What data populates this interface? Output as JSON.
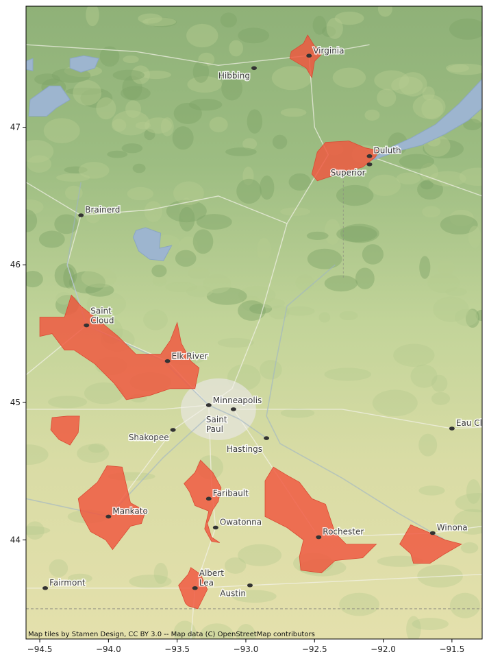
{
  "map": {
    "extent": {
      "lon": [
        -94.6,
        -91.28
      ],
      "lat": [
        43.28,
        47.88
      ]
    },
    "x_ticks": [
      {
        "value": -94.5,
        "label": "−94.5"
      },
      {
        "value": -94.0,
        "label": "−94.0"
      },
      {
        "value": -93.5,
        "label": "−93.5"
      },
      {
        "value": -93.0,
        "label": "−93.0"
      },
      {
        "value": -92.5,
        "label": "−92.5"
      },
      {
        "value": -92.0,
        "label": "−92.0"
      },
      {
        "value": -91.5,
        "label": "−91.5"
      }
    ],
    "y_ticks": [
      {
        "value": 44,
        "label": "44"
      },
      {
        "value": 45,
        "label": "45"
      },
      {
        "value": 46,
        "label": "46"
      },
      {
        "value": 47,
        "label": "47"
      }
    ],
    "colors": {
      "basemap_green": "#a9c585",
      "basemap_yellow": "#dfe0a9",
      "water": "#9db5cf",
      "region_fill": "#f0563e",
      "region_edge": "#d94a33",
      "city_dot": "#333333"
    },
    "regions": [
      {
        "name": "virginia-region",
        "coords": [
          [
            -92.67,
            47.55
          ],
          [
            -92.58,
            47.61
          ],
          [
            -92.55,
            47.67
          ],
          [
            -92.5,
            47.59
          ],
          [
            -92.44,
            47.54
          ],
          [
            -92.5,
            47.48
          ],
          [
            -92.52,
            47.36
          ],
          [
            -92.56,
            47.43
          ],
          [
            -92.68,
            47.5
          ]
        ]
      },
      {
        "name": "duluth-superior-region",
        "coords": [
          [
            -92.52,
            46.66
          ],
          [
            -92.48,
            46.82
          ],
          [
            -92.42,
            46.89
          ],
          [
            -92.25,
            46.9
          ],
          [
            -92.13,
            46.85
          ],
          [
            -92.03,
            46.83
          ],
          [
            -92.06,
            46.78
          ],
          [
            -92.15,
            46.71
          ],
          [
            -92.3,
            46.67
          ],
          [
            -92.48,
            46.61
          ]
        ]
      },
      {
        "name": "saint-cloud-elk-river-region",
        "coords": [
          [
            -94.5,
            45.62
          ],
          [
            -94.32,
            45.62
          ],
          [
            -94.27,
            45.78
          ],
          [
            -94.2,
            45.7
          ],
          [
            -94.05,
            45.58
          ],
          [
            -93.93,
            45.48
          ],
          [
            -93.8,
            45.35
          ],
          [
            -93.62,
            45.35
          ],
          [
            -93.55,
            45.45
          ],
          [
            -93.5,
            45.58
          ],
          [
            -93.47,
            45.43
          ],
          [
            -93.4,
            45.3
          ],
          [
            -93.34,
            45.25
          ],
          [
            -93.37,
            45.1
          ],
          [
            -93.55,
            45.1
          ],
          [
            -93.7,
            45.05
          ],
          [
            -93.87,
            45.02
          ],
          [
            -93.96,
            45.14
          ],
          [
            -94.1,
            45.28
          ],
          [
            -94.25,
            45.38
          ],
          [
            -94.32,
            45.38
          ],
          [
            -94.41,
            45.5
          ],
          [
            -94.5,
            45.48
          ]
        ]
      },
      {
        "name": "west-small-region",
        "coords": [
          [
            -94.41,
            44.89
          ],
          [
            -94.3,
            44.9
          ],
          [
            -94.21,
            44.9
          ],
          [
            -94.22,
            44.78
          ],
          [
            -94.28,
            44.69
          ],
          [
            -94.36,
            44.73
          ],
          [
            -94.42,
            44.8
          ]
        ]
      },
      {
        "name": "mankato-region",
        "coords": [
          [
            -94.22,
            44.3
          ],
          [
            -94.08,
            44.42
          ],
          [
            -94.01,
            44.54
          ],
          [
            -93.9,
            44.53
          ],
          [
            -93.84,
            44.27
          ],
          [
            -93.73,
            44.21
          ],
          [
            -93.76,
            44.12
          ],
          [
            -93.84,
            44.1
          ],
          [
            -93.97,
            43.93
          ],
          [
            -94.02,
            44.0
          ],
          [
            -94.13,
            44.06
          ],
          [
            -94.2,
            44.19
          ]
        ]
      },
      {
        "name": "faribault-owatonna-region",
        "coords": [
          [
            -93.45,
            44.41
          ],
          [
            -93.37,
            44.49
          ],
          [
            -93.33,
            44.58
          ],
          [
            -93.24,
            44.49
          ],
          [
            -93.18,
            44.38
          ],
          [
            -93.2,
            44.28
          ],
          [
            -93.24,
            44.22
          ],
          [
            -93.28,
            44.12
          ],
          [
            -93.25,
            44.02
          ],
          [
            -93.19,
            43.98
          ],
          [
            -93.25,
            43.99
          ],
          [
            -93.3,
            44.08
          ],
          [
            -93.27,
            44.21
          ],
          [
            -93.37,
            44.25
          ],
          [
            -93.41,
            44.35
          ]
        ]
      },
      {
        "name": "rochester-region",
        "coords": [
          [
            -92.86,
            44.43
          ],
          [
            -92.8,
            44.53
          ],
          [
            -92.7,
            44.47
          ],
          [
            -92.61,
            44.42
          ],
          [
            -92.52,
            44.3
          ],
          [
            -92.42,
            44.26
          ],
          [
            -92.35,
            44.05
          ],
          [
            -92.27,
            43.97
          ],
          [
            -92.05,
            43.97
          ],
          [
            -92.15,
            43.87
          ],
          [
            -92.35,
            43.85
          ],
          [
            -92.45,
            43.76
          ],
          [
            -92.6,
            43.78
          ],
          [
            -92.61,
            43.88
          ],
          [
            -92.58,
            44.0
          ],
          [
            -92.7,
            44.09
          ],
          [
            -92.86,
            44.17
          ]
        ]
      },
      {
        "name": "winona-region",
        "coords": [
          [
            -91.88,
            43.97
          ],
          [
            -91.8,
            44.11
          ],
          [
            -91.68,
            44.06
          ],
          [
            -91.55,
            44.0
          ],
          [
            -91.43,
            43.97
          ],
          [
            -91.55,
            43.9
          ],
          [
            -91.66,
            43.83
          ],
          [
            -91.78,
            43.83
          ],
          [
            -91.8,
            43.9
          ]
        ]
      },
      {
        "name": "albert-lea-region",
        "coords": [
          [
            -93.49,
            43.67
          ],
          [
            -93.42,
            43.75
          ],
          [
            -93.4,
            43.8
          ],
          [
            -93.33,
            43.75
          ],
          [
            -93.28,
            43.64
          ],
          [
            -93.35,
            43.5
          ],
          [
            -93.42,
            43.52
          ],
          [
            -93.44,
            43.54
          ],
          [
            -93.47,
            43.62
          ]
        ]
      }
    ],
    "lakes": [
      {
        "name": "lake-superior",
        "coords": [
          [
            -92.08,
            46.76
          ],
          [
            -91.88,
            46.83
          ],
          [
            -91.72,
            46.87
          ],
          [
            -91.55,
            46.95
          ],
          [
            -91.38,
            47.05
          ],
          [
            -91.28,
            47.14
          ],
          [
            -91.28,
            47.35
          ],
          [
            -91.45,
            47.17
          ],
          [
            -91.62,
            47.02
          ],
          [
            -91.8,
            46.92
          ],
          [
            -92.0,
            46.83
          ]
        ]
      },
      {
        "name": "mille-lacs",
        "coords": [
          [
            -93.8,
            46.25
          ],
          [
            -93.73,
            46.27
          ],
          [
            -93.62,
            46.23
          ],
          [
            -93.63,
            46.12
          ],
          [
            -93.54,
            46.14
          ],
          [
            -93.6,
            46.03
          ],
          [
            -93.7,
            46.04
          ],
          [
            -93.78,
            46.1
          ],
          [
            -93.82,
            46.2
          ]
        ]
      },
      {
        "name": "leech-lake",
        "coords": [
          [
            -94.57,
            47.2
          ],
          [
            -94.43,
            47.3
          ],
          [
            -94.35,
            47.3
          ],
          [
            -94.28,
            47.2
          ],
          [
            -94.38,
            47.14
          ],
          [
            -94.45,
            47.08
          ],
          [
            -94.58,
            47.08
          ]
        ]
      },
      {
        "name": "lake-winnibigoshish",
        "coords": [
          [
            -94.28,
            47.5
          ],
          [
            -94.18,
            47.52
          ],
          [
            -94.07,
            47.5
          ],
          [
            -94.1,
            47.43
          ],
          [
            -94.2,
            47.4
          ],
          [
            -94.28,
            47.43
          ]
        ]
      },
      {
        "name": "red-lake-edge",
        "coords": [
          [
            -94.6,
            47.48
          ],
          [
            -94.55,
            47.5
          ],
          [
            -94.55,
            47.41
          ],
          [
            -94.6,
            47.42
          ]
        ]
      }
    ],
    "cities": [
      {
        "name": "Virginia",
        "lon": -92.54,
        "lat": 47.52,
        "dx": 6,
        "dy": -3,
        "anchor": "start"
      },
      {
        "name": "Hibbing",
        "lon": -92.94,
        "lat": 47.43,
        "dx": -6,
        "dy": 15,
        "anchor": "end"
      },
      {
        "name": "Duluth",
        "lon": -92.1,
        "lat": 46.79,
        "dx": 6,
        "dy": -4,
        "anchor": "start"
      },
      {
        "name": "Superior",
        "lon": -92.1,
        "lat": 46.73,
        "dx": -6,
        "dy": 16,
        "anchor": "end"
      },
      {
        "name": "Brainerd",
        "lon": -94.2,
        "lat": 46.36,
        "dx": 6,
        "dy": -4,
        "anchor": "start"
      },
      {
        "name": "Saint Cloud",
        "lon": -94.16,
        "lat": 45.56,
        "dx": 6,
        "dy": -17,
        "anchor": "start",
        "line2": "Cloud"
      },
      {
        "name": "Elk River",
        "lon": -93.57,
        "lat": 45.3,
        "dx": 6,
        "dy": -3,
        "anchor": "start"
      },
      {
        "name": "Minneapolis",
        "lon": -93.27,
        "lat": 44.98,
        "dx": 6,
        "dy": -3,
        "anchor": "start"
      },
      {
        "name": "Saint Paul",
        "lon": -93.09,
        "lat": 44.95,
        "dx": -40,
        "dy": 19,
        "anchor": "start",
        "line2": "Paul"
      },
      {
        "name": "Shakopee",
        "lon": -93.53,
        "lat": 44.8,
        "dx": -6,
        "dy": 15,
        "anchor": "end"
      },
      {
        "name": "Hastings",
        "lon": -92.85,
        "lat": 44.74,
        "dx": -6,
        "dy": 20,
        "anchor": "end"
      },
      {
        "name": "Eau Claire",
        "lon": -91.5,
        "lat": 44.81,
        "dx": 6,
        "dy": -4,
        "anchor": "start"
      },
      {
        "name": "Faribault",
        "lon": -93.27,
        "lat": 44.3,
        "dx": 6,
        "dy": -4,
        "anchor": "start"
      },
      {
        "name": "Owatonna",
        "lon": -93.22,
        "lat": 44.09,
        "dx": 6,
        "dy": -4,
        "anchor": "start"
      },
      {
        "name": "Mankato",
        "lon": -94.0,
        "lat": 44.17,
        "dx": 6,
        "dy": -4,
        "anchor": "start"
      },
      {
        "name": "Rochester",
        "lon": -92.47,
        "lat": 44.02,
        "dx": 6,
        "dy": -4,
        "anchor": "start"
      },
      {
        "name": "Winona",
        "lon": -91.64,
        "lat": 44.05,
        "dx": 6,
        "dy": -4,
        "anchor": "start"
      },
      {
        "name": "Fairmont",
        "lon": -94.46,
        "lat": 43.65,
        "dx": 6,
        "dy": -4,
        "anchor": "start"
      },
      {
        "name": "Albert Lea",
        "lon": -93.37,
        "lat": 43.65,
        "dx": 6,
        "dy": -18,
        "anchor": "start",
        "line2": "Lea"
      },
      {
        "name": "Austin",
        "lon": -92.97,
        "lat": 43.67,
        "dx": -6,
        "dy": 16,
        "anchor": "end"
      }
    ],
    "city_labels": {
      "Virginia": "Virginia",
      "Hibbing": "Hibbing",
      "Duluth": "Duluth",
      "Superior": "Superior",
      "Brainerd": "Brainerd",
      "Saint Cloud": "Saint",
      "Elk River": "Elk River",
      "Minneapolis": "Minneapolis",
      "Saint Paul": "Saint",
      "Shakopee": "Shakopee",
      "Hastings": "Hastings",
      "Eau Claire": "Eau Cl",
      "Faribault": "Faribault",
      "Owatonna": "Owatonna",
      "Mankato": "Mankato",
      "Rochester": "Rochester",
      "Winona": "Winona",
      "Fairmont": "Fairmont",
      "Albert Lea": "Albert",
      "Austin": "Austin"
    },
    "attribution": "Map tiles by Stamen Design, CC BY 3.0 -- Map data (C) OpenStreetMap contributors"
  }
}
